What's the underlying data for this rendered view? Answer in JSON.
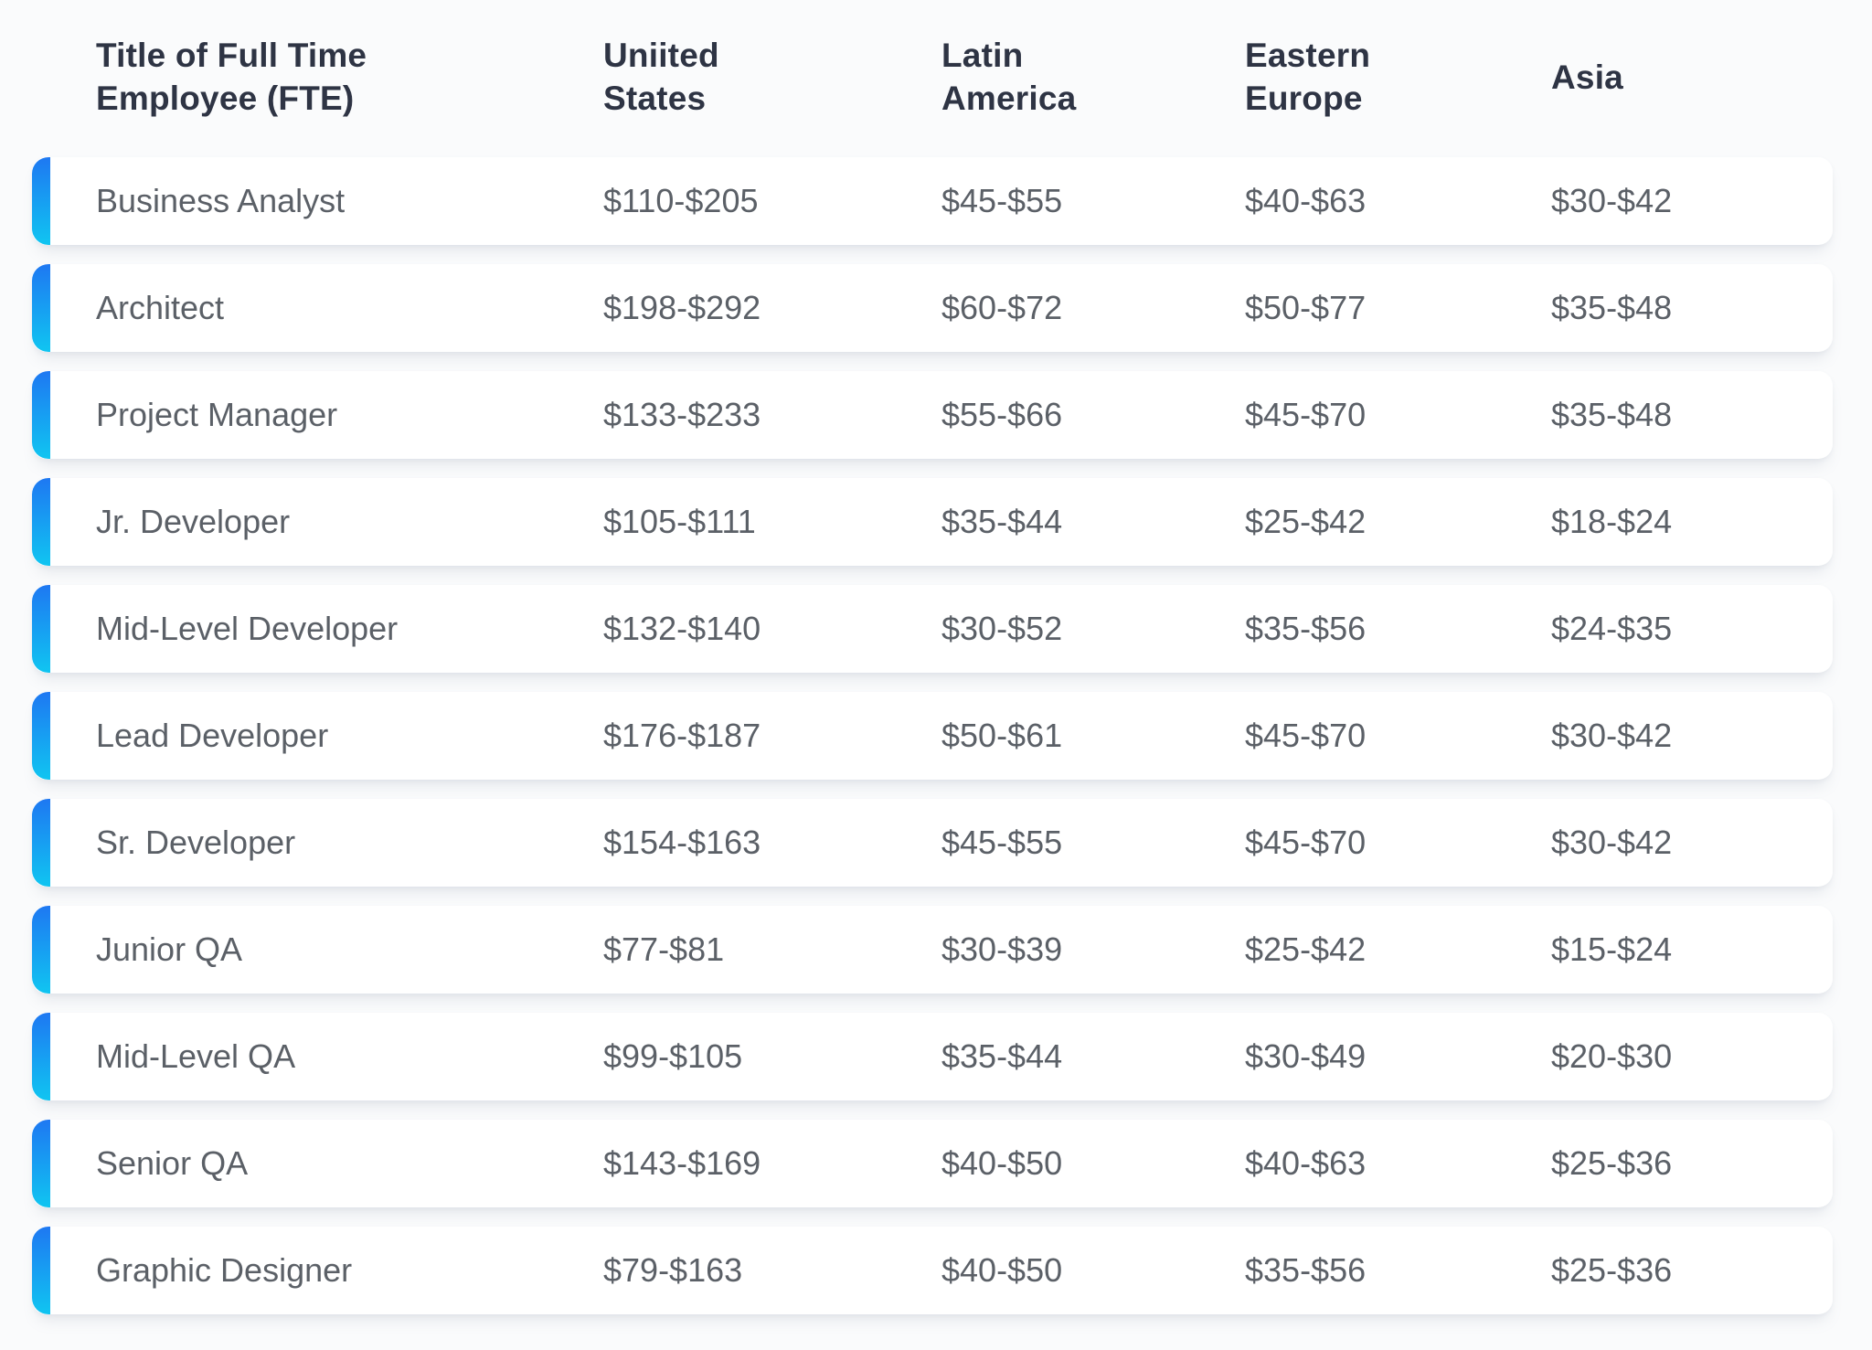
{
  "chart_data": {
    "type": "table",
    "title": "",
    "columns": [
      {
        "label": "Title of Full Time Employee (FTE)"
      },
      {
        "label": "Uniited States"
      },
      {
        "label": "Latin America"
      },
      {
        "label": "Eastern Europe"
      },
      {
        "label": "Asia"
      }
    ],
    "rows": [
      {
        "title": "Business Analyst",
        "rates": [
          "$110-$205",
          "$45-$55",
          "$40-$63",
          "$30-$42"
        ]
      },
      {
        "title": "Architect",
        "rates": [
          "$198-$292",
          "$60-$72",
          "$50-$77",
          "$35-$48"
        ]
      },
      {
        "title": "Project Manager",
        "rates": [
          "$133-$233",
          "$55-$66",
          "$45-$70",
          "$35-$48"
        ]
      },
      {
        "title": "Jr. Developer",
        "rates": [
          "$105-$111",
          "$35-$44",
          "$25-$42",
          "$18-$24"
        ]
      },
      {
        "title": "Mid-Level Developer",
        "rates": [
          "$132-$140",
          "$30-$52",
          "$35-$56",
          "$24-$35"
        ]
      },
      {
        "title": "Lead Developer",
        "rates": [
          "$176-$187",
          "$50-$61",
          "$45-$70",
          "$30-$42"
        ]
      },
      {
        "title": "Sr. Developer",
        "rates": [
          "$154-$163",
          "$45-$55",
          "$45-$70",
          "$30-$42"
        ]
      },
      {
        "title": "Junior QA",
        "rates": [
          "$77-$81",
          "$30-$39",
          "$25-$42",
          "$15-$24"
        ]
      },
      {
        "title": "Mid-Level QA",
        "rates": [
          "$99-$105",
          "$35-$44",
          "$30-$49",
          "$20-$30"
        ]
      },
      {
        "title": "Senior QA",
        "rates": [
          "$143-$169",
          "$40-$50",
          "$40-$63",
          "$25-$36"
        ]
      },
      {
        "title": "Graphic Designer",
        "rates": [
          "$79-$163",
          "$40-$50",
          "$35-$56",
          "$25-$36"
        ]
      }
    ],
    "layout": {
      "grid": "off",
      "legend": "none",
      "row_style": "white cards with blue gradient left accent"
    },
    "colors": {
      "accent_gradient_top": "#1e78f2",
      "accent_gradient_bottom": "#10c5f1",
      "card_background": "#ffffff",
      "page_background": "#fafbfc",
      "header_text": "#2e3444",
      "body_text": "#5b6067"
    }
  }
}
